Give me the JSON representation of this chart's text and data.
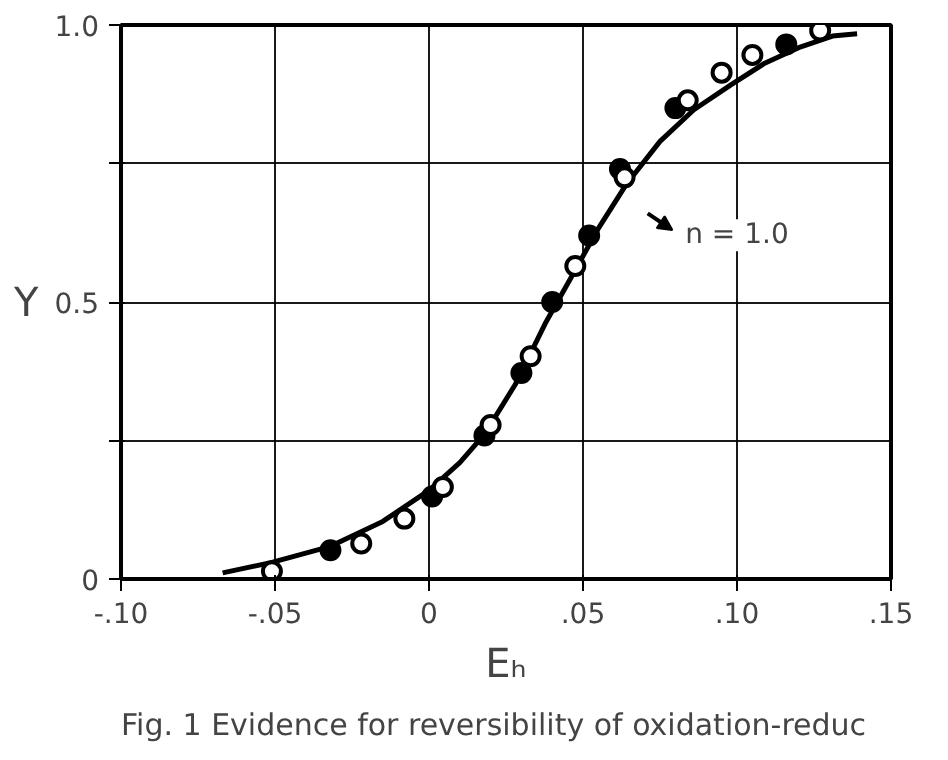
{
  "chart_data": {
    "type": "scatter",
    "xlabel": "Eₕ",
    "ylabel": "Y",
    "xlim": [
      -0.1,
      0.15
    ],
    "ylim": [
      0,
      1.0
    ],
    "xticks": [
      {
        "value": -0.1,
        "label": "-.10"
      },
      {
        "value": -0.05,
        "label": "-.05"
      },
      0,
      {
        "value": 0.05,
        "label": ".05"
      },
      {
        "value": 0.1,
        "label": ".10"
      },
      {
        "value": 0.15,
        "label": ".15"
      }
    ],
    "yticks": [
      0,
      {
        "value": 0.25,
        "label": null
      },
      {
        "value": 0.5,
        "label": "0.5"
      },
      {
        "value": 0.75,
        "label": null
      },
      {
        "value": 1.0,
        "label": "1.0"
      }
    ],
    "grid": true,
    "series": [
      {
        "type": "line",
        "color": "#000000",
        "marker": "none",
        "line_style": "solid",
        "x": [
          -0.067,
          -0.051,
          -0.032,
          -0.015,
          0.0,
          0.01,
          0.018,
          0.028,
          0.038,
          0.046,
          0.055,
          0.064,
          0.075,
          0.086,
          0.098,
          0.109,
          0.12,
          0.131,
          0.139
        ],
        "values": [
          0.011,
          0.03,
          0.059,
          0.104,
          0.16,
          0.21,
          0.261,
          0.351,
          0.464,
          0.543,
          0.633,
          0.712,
          0.79,
          0.847,
          0.892,
          0.931,
          0.959,
          0.98,
          0.984
        ]
      },
      {
        "color": "#000000",
        "marker": "circle",
        "x": [
          -0.032,
          0.001,
          0.018,
          0.03,
          0.04,
          0.052,
          0.062,
          0.08,
          0.116
        ],
        "values": [
          0.052,
          0.149,
          0.259,
          0.372,
          0.5,
          0.62,
          0.74,
          0.85,
          0.965
        ]
      },
      {
        "color": "#000000",
        "marker": "circle_open",
        "x": [
          -0.051,
          -0.022,
          -0.008,
          0.0045,
          0.02,
          0.033,
          0.0475,
          0.0635,
          0.084,
          0.095,
          0.105,
          0.127
        ],
        "values": [
          0.014,
          0.064,
          0.109,
          0.166,
          0.278,
          0.402,
          0.565,
          0.725,
          0.864,
          0.914,
          0.946,
          0.99
        ]
      }
    ],
    "annotations": [
      {
        "text": "n = 1.0",
        "x": 0.065,
        "y": 0.7
      },
      "Fig. 1 Evidence for reversibility of oxidation-reduc"
    ]
  }
}
